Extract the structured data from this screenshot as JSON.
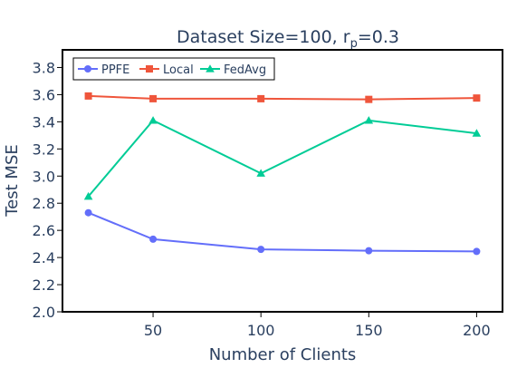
{
  "chart_data": {
    "type": "line",
    "title": "Dataset Size=100, r",
    "title_sub": "p",
    "title_tail": "=0.3",
    "xlabel": "Number of Clients",
    "ylabel": "Test MSE",
    "x": [
      20,
      50,
      100,
      150,
      200
    ],
    "xticks": [
      50,
      100,
      150,
      200
    ],
    "xtick_labels": [
      "50",
      "100",
      "150",
      "200"
    ],
    "xlim": [
      8,
      212
    ],
    "yticks": [
      2.0,
      2.2,
      2.4,
      2.6,
      2.8,
      3.0,
      3.2,
      3.4,
      3.6,
      3.8
    ],
    "ytick_labels": [
      "2.0",
      "2.2",
      "2.4",
      "2.6",
      "2.8",
      "3.0",
      "3.2",
      "3.4",
      "3.6",
      "3.8"
    ],
    "ylim": [
      2.0,
      3.93
    ],
    "grid": false,
    "legend_position": "top-left",
    "series": [
      {
        "name": "PPFE",
        "marker": "circle",
        "color": "#636efa",
        "values": [
          2.73,
          2.535,
          2.46,
          2.45,
          2.445
        ]
      },
      {
        "name": "Local",
        "marker": "square",
        "color": "#ef553b",
        "values": [
          3.59,
          3.57,
          3.57,
          3.565,
          3.575
        ]
      },
      {
        "name": "FedAvg",
        "marker": "triangle",
        "color": "#00cc96",
        "values": [
          2.85,
          3.41,
          3.02,
          3.41,
          3.315
        ]
      }
    ]
  }
}
